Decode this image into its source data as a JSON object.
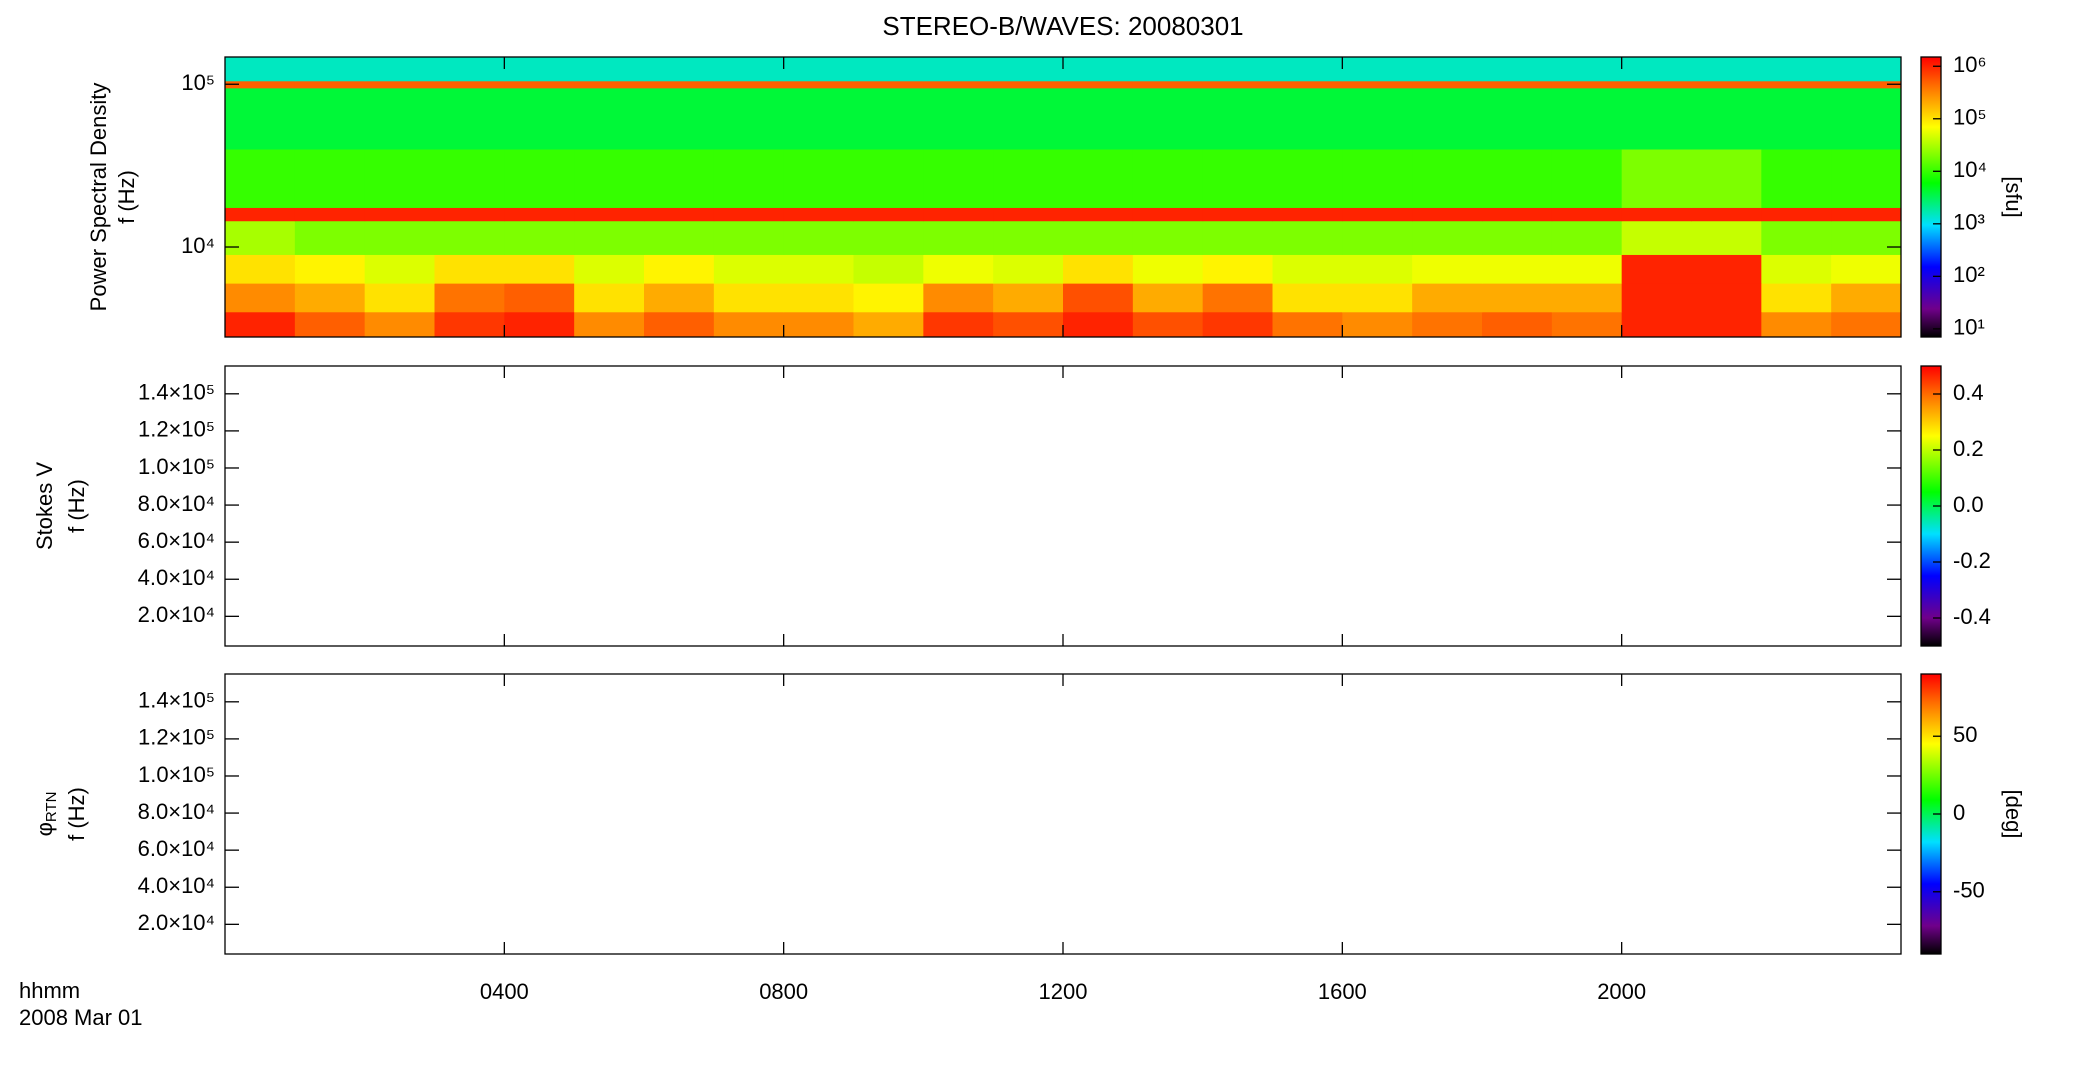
{
  "page": {
    "title": "STEREO-B/WAVES: 20080301",
    "time_label": "hhmm",
    "date_label": "2008 Mar 01"
  },
  "chart_data": [
    {
      "type": "heatmap",
      "ylabel": [
        "Power Spectral Density",
        "f (Hz)"
      ],
      "colormap": "rainbow",
      "xlim": [
        0,
        24
      ],
      "xticks": [
        {
          "value": 4,
          "label": "0400"
        },
        {
          "value": 8,
          "label": "0800"
        },
        {
          "value": 12,
          "label": "1200"
        },
        {
          "value": 16,
          "label": "1600"
        },
        {
          "value": 20,
          "label": "2000"
        }
      ],
      "ylim": [
        2800,
        147000
      ],
      "y_log": true,
      "yticks": [
        {
          "value": 10000,
          "label": "10⁴"
        },
        {
          "value": 100000,
          "label": "10⁵"
        }
      ],
      "x_bins": [
        0,
        1,
        2,
        3,
        4,
        5,
        6,
        7,
        8,
        9,
        10,
        11,
        12,
        13,
        14,
        15,
        16,
        17,
        18,
        19,
        20,
        21,
        22,
        23,
        24
      ],
      "y_bins": [
        2800,
        4000,
        6000,
        9000,
        14500,
        17500,
        40000,
        95000,
        105000,
        147000
      ],
      "values": [
        [
          1000000,
          500000,
          300000,
          800000,
          1000000,
          300000,
          500000,
          300000,
          300000,
          200000,
          800000,
          600000,
          1000000,
          600000,
          800000,
          400000,
          300000,
          400000,
          500000,
          400000,
          1000000,
          1000000,
          300000,
          400000
        ],
        [
          300000,
          200000,
          100000,
          400000,
          500000,
          100000,
          200000,
          100000,
          100000,
          80000,
          300000,
          200000,
          600000,
          200000,
          400000,
          100000,
          100000,
          200000,
          200000,
          200000,
          1000000,
          1000000,
          100000,
          200000
        ],
        [
          100000,
          80000,
          50000,
          100000,
          100000,
          50000,
          80000,
          50000,
          50000,
          40000,
          60000,
          50000,
          100000,
          60000,
          80000,
          50000,
          50000,
          60000,
          60000,
          60000,
          1000000,
          1000000,
          50000,
          60000
        ],
        [
          30000,
          20000,
          20000,
          20000,
          20000,
          20000,
          20000,
          20000,
          20000,
          20000,
          20000,
          20000,
          20000,
          20000,
          20000,
          20000,
          20000,
          20000,
          20000,
          20000,
          40000,
          40000,
          20000,
          20000
        ],
        [
          1000000,
          1000000,
          1000000,
          1000000,
          1000000,
          1000000,
          1000000,
          1000000,
          1000000,
          1000000,
          1000000,
          1000000,
          1000000,
          1000000,
          1000000,
          1000000,
          1000000,
          1000000,
          1000000,
          1000000,
          1000000,
          1000000,
          1000000,
          1000000
        ],
        [
          10000,
          10000,
          10000,
          10000,
          10000,
          10000,
          10000,
          10000,
          10000,
          10000,
          10000,
          10000,
          10000,
          10000,
          10000,
          10000,
          10000,
          10000,
          10000,
          10000,
          20000,
          20000,
          10000,
          10000
        ],
        [
          4000,
          4000,
          4000,
          4000,
          4000,
          4000,
          4000,
          4000,
          4000,
          4000,
          4000,
          4000,
          4000,
          4000,
          4000,
          4000,
          4000,
          4000,
          4000,
          4000,
          4000,
          4000,
          4000,
          4000
        ],
        [
          500000,
          500000,
          500000,
          500000,
          500000,
          500000,
          500000,
          500000,
          500000,
          500000,
          500000,
          500000,
          500000,
          500000,
          500000,
          500000,
          500000,
          500000,
          500000,
          500000,
          500000,
          500000,
          500000,
          500000
        ],
        [
          1500,
          1500,
          1500,
          1500,
          1500,
          1500,
          1500,
          1500,
          1500,
          1500,
          1500,
          1500,
          1500,
          1500,
          1500,
          1500,
          1500,
          1500,
          1500,
          1500,
          1500,
          1500,
          1500,
          1500
        ]
      ],
      "colorbar": {
        "clim": [
          7,
          1500000
        ],
        "log": true,
        "label": "[sfu]",
        "ticks": [
          {
            "value": 10,
            "label": "10¹"
          },
          {
            "value": 100,
            "label": "10²"
          },
          {
            "value": 1000,
            "label": "10³"
          },
          {
            "value": 10000,
            "label": "10⁴"
          },
          {
            "value": 100000,
            "label": "10⁵"
          },
          {
            "value": 1000000,
            "label": "10⁶"
          }
        ]
      }
    },
    {
      "type": "heatmap",
      "ylabel": [
        "Stokes V",
        "f (Hz)"
      ],
      "colormap": "rainbow",
      "xlim": [
        0,
        24
      ],
      "xticks": [
        {
          "value": 4,
          "label": "0400"
        },
        {
          "value": 8,
          "label": "0800"
        },
        {
          "value": 12,
          "label": "1200"
        },
        {
          "value": 16,
          "label": "1600"
        },
        {
          "value": 20,
          "label": "2000"
        }
      ],
      "ylim": [
        4000,
        155000
      ],
      "yticks": [
        {
          "value": 20000,
          "label": "2.0×10⁴"
        },
        {
          "value": 40000,
          "label": "4.0×10⁴"
        },
        {
          "value": 60000,
          "label": "6.0×10⁴"
        },
        {
          "value": 80000,
          "label": "8.0×10⁴"
        },
        {
          "value": 100000,
          "label": "1.0×10⁵"
        },
        {
          "value": 120000,
          "label": "1.2×10⁵"
        },
        {
          "value": 140000,
          "label": "1.4×10⁵"
        }
      ],
      "colorbar": {
        "clim": [
          -0.5,
          0.5
        ],
        "log": false,
        "ticks": [
          -0.4,
          -0.2,
          {
            "value": 0,
            "label": "0.0"
          },
          0.2,
          0.4
        ]
      }
    },
    {
      "type": "heatmap",
      "ylabel_symbol": "φ",
      "ylabel_sub": "RTN",
      "ylabel": [
        "f (Hz)"
      ],
      "colormap": "rainbow",
      "xlim": [
        0,
        24
      ],
      "xticks": [
        {
          "value": 4,
          "label": "0400"
        },
        {
          "value": 8,
          "label": "0800"
        },
        {
          "value": 12,
          "label": "1200"
        },
        {
          "value": 16,
          "label": "1600"
        },
        {
          "value": 20,
          "label": "2000"
        }
      ],
      "ylim": [
        4000,
        155000
      ],
      "yticks": [
        {
          "value": 20000,
          "label": "2.0×10⁴"
        },
        {
          "value": 40000,
          "label": "4.0×10⁴"
        },
        {
          "value": 60000,
          "label": "6.0×10⁴"
        },
        {
          "value": 80000,
          "label": "8.0×10⁴"
        },
        {
          "value": 100000,
          "label": "1.0×10⁵"
        },
        {
          "value": 120000,
          "label": "1.2×10⁵"
        },
        {
          "value": 140000,
          "label": "1.4×10⁵"
        }
      ],
      "colorbar": {
        "clim": [
          -90,
          90
        ],
        "log": false,
        "label": "[deg]",
        "ticks": [
          -50,
          0,
          50
        ]
      }
    }
  ]
}
